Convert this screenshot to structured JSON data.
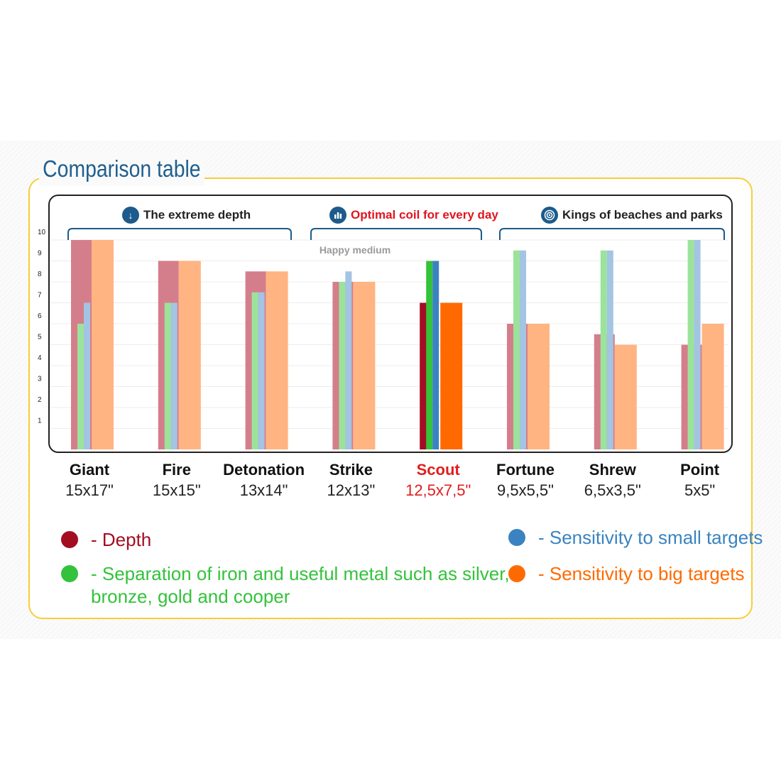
{
  "title": "Comparison table",
  "groups": [
    {
      "label": "The extreme depth",
      "icon": "arrow-down-icon",
      "highlight": false
    },
    {
      "label": "Optimal coil for every day",
      "icon": "bar-chart-icon",
      "highlight": true
    },
    {
      "label": "Kings of beaches and parks",
      "icon": "target-icon",
      "highlight": false
    }
  ],
  "annotation": "Happy medium",
  "chart_data": {
    "type": "bar",
    "categories": [
      "Giant",
      "Fire",
      "Detonation",
      "Strike",
      "Scout",
      "Fortune",
      "Shrew",
      "Point"
    ],
    "sizes": [
      "15x17\"",
      "15x15\"",
      "13x14\"",
      "12x13\"",
      "12,5x7,5\"",
      "9,5x5,5\"",
      "6,5x3,5\"",
      "5x5\""
    ],
    "highlight_index": 4,
    "yticks": [
      1,
      2,
      3,
      4,
      5,
      6,
      7,
      8,
      9,
      10
    ],
    "ylim": [
      0,
      10
    ],
    "grid": true,
    "series": [
      {
        "name": "- Depth",
        "color": "#a30d22",
        "light_color": "#d57e8b",
        "values": [
          10,
          9,
          8.5,
          8,
          7,
          6,
          5.5,
          5
        ]
      },
      {
        "name": "- Separation of iron and useful metal such as silver,\nbronze, gold and cooper",
        "color": "#34c23c",
        "light_color": "#9be39b",
        "values": [
          6,
          7,
          7.5,
          8,
          9,
          9.5,
          9.5,
          10
        ]
      },
      {
        "name": "- Sensitivity to small targets",
        "color": "#3a83c0",
        "light_color": "#a3c4e3",
        "values": [
          7,
          7,
          7.5,
          8.5,
          9,
          9.5,
          9.5,
          10
        ]
      },
      {
        "name": "- Sensitivity to big targets",
        "color": "#ff6a00",
        "light_color": "#ffb482",
        "values": [
          10,
          9,
          8.5,
          8,
          7,
          6,
          5,
          6
        ]
      }
    ],
    "legend": "bottom"
  }
}
